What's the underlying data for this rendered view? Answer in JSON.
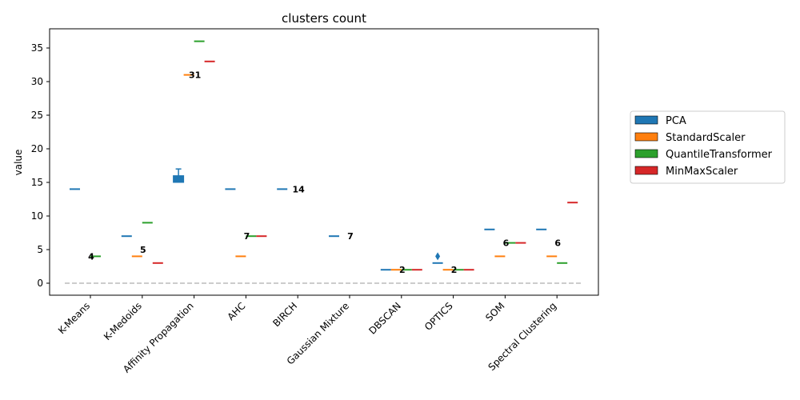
{
  "chart_data": {
    "type": "box",
    "title": "clusters count",
    "xlabel": "",
    "ylabel": "value",
    "ylim": [
      -1.8,
      38
    ],
    "yticks": [
      0,
      5,
      10,
      15,
      20,
      25,
      30,
      35
    ],
    "categories": [
      "K-Means",
      "K-Medoids",
      "Affinity Propagation",
      "AHC",
      "BIRCH",
      "Gaussian Mixture",
      "DBSCAN",
      "OPTICS",
      "SOM",
      "Spectral Clustering"
    ],
    "series": [
      {
        "name": "PCA",
        "color": "#1f77b4"
      },
      {
        "name": "StandardScaler",
        "color": "#ff7f0e"
      },
      {
        "name": "QuantileTransformer",
        "color": "#2ca02c"
      },
      {
        "name": "MinMaxScaler",
        "color": "#d62728"
      }
    ],
    "marks": [
      {
        "cat": 0,
        "series": 0,
        "value": 14
      },
      {
        "cat": 0,
        "series": 2,
        "value": 4
      },
      {
        "cat": 1,
        "series": 0,
        "value": 7
      },
      {
        "cat": 1,
        "series": 1,
        "value": 4
      },
      {
        "cat": 1,
        "series": 2,
        "value": 9
      },
      {
        "cat": 1,
        "series": 3,
        "value": 3
      },
      {
        "cat": 2,
        "series": 0,
        "box": {
          "q1": 15,
          "median": 15,
          "q3": 16,
          "whisker_low": 15,
          "whisker_high": 17
        }
      },
      {
        "cat": 2,
        "series": 1,
        "value": 31
      },
      {
        "cat": 2,
        "series": 2,
        "value": 36
      },
      {
        "cat": 2,
        "series": 3,
        "value": 33
      },
      {
        "cat": 3,
        "series": 0,
        "value": 14
      },
      {
        "cat": 3,
        "series": 1,
        "value": 4
      },
      {
        "cat": 3,
        "series": 2,
        "value": 7
      },
      {
        "cat": 3,
        "series": 3,
        "value": 7
      },
      {
        "cat": 4,
        "series": 0,
        "value": 14
      },
      {
        "cat": 5,
        "series": 0,
        "value": 7
      },
      {
        "cat": 6,
        "series": 0,
        "value": 2
      },
      {
        "cat": 6,
        "series": 1,
        "value": 2
      },
      {
        "cat": 6,
        "series": 2,
        "value": 2
      },
      {
        "cat": 6,
        "series": 3,
        "value": 2
      },
      {
        "cat": 7,
        "series": 0,
        "value": 3,
        "outliers": [
          4
        ]
      },
      {
        "cat": 7,
        "series": 1,
        "value": 2
      },
      {
        "cat": 7,
        "series": 2,
        "value": 2
      },
      {
        "cat": 7,
        "series": 3,
        "value": 2
      },
      {
        "cat": 8,
        "series": 0,
        "value": 8
      },
      {
        "cat": 8,
        "series": 1,
        "value": 4
      },
      {
        "cat": 8,
        "series": 2,
        "value": 6
      },
      {
        "cat": 8,
        "series": 3,
        "value": 6
      },
      {
        "cat": 9,
        "series": 0,
        "value": 8
      },
      {
        "cat": 9,
        "series": 1,
        "value": 4
      },
      {
        "cat": 9,
        "series": 2,
        "value": 3
      },
      {
        "cat": 9,
        "series": 3,
        "value": 12
      }
    ],
    "annotations": [
      {
        "cat": 0,
        "label": "4",
        "value": 4
      },
      {
        "cat": 1,
        "label": "5",
        "value": 5
      },
      {
        "cat": 2,
        "label": "31",
        "value": 31
      },
      {
        "cat": 3,
        "label": "7",
        "value": 7
      },
      {
        "cat": 4,
        "label": "14",
        "value": 14
      },
      {
        "cat": 5,
        "label": "7",
        "value": 7
      },
      {
        "cat": 6,
        "label": "2",
        "value": 2
      },
      {
        "cat": 7,
        "label": "2",
        "value": 2
      },
      {
        "cat": 8,
        "label": "6",
        "value": 6
      },
      {
        "cat": 9,
        "label": "6",
        "value": 6
      }
    ],
    "reference_line": {
      "value": 0,
      "style": "dashed",
      "color": "#bbbbbb"
    },
    "legend_position": "right"
  }
}
